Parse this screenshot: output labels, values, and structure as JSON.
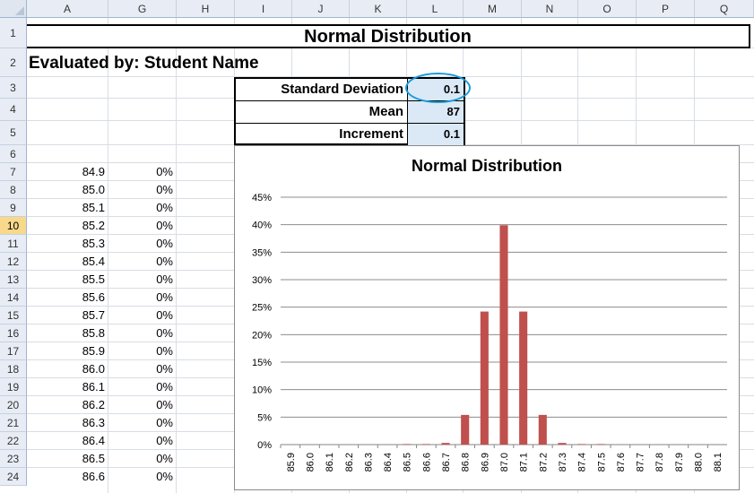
{
  "columns": [
    "A",
    "G",
    "H",
    "I",
    "J",
    "K",
    "L",
    "M",
    "N",
    "O",
    "P",
    "Q"
  ],
  "rows": [
    "1",
    "2",
    "3",
    "4",
    "5",
    "6",
    "7",
    "8",
    "9",
    "10",
    "11",
    "12",
    "13",
    "14",
    "15",
    "16",
    "17",
    "18",
    "19",
    "20",
    "21",
    "22",
    "23",
    "24"
  ],
  "selected_row": "10",
  "sheet": {
    "title": "Normal Distribution",
    "evaluated_by": "Evaluated by: Student Name"
  },
  "params": [
    {
      "label": "Standard Deviation",
      "value": "0.1"
    },
    {
      "label": "Mean",
      "value": "87"
    },
    {
      "label": "Increment",
      "value": "0.1"
    }
  ],
  "table": [
    {
      "x": "84.9",
      "p": "0%"
    },
    {
      "x": "85.0",
      "p": "0%"
    },
    {
      "x": "85.1",
      "p": "0%"
    },
    {
      "x": "85.2",
      "p": "0%"
    },
    {
      "x": "85.3",
      "p": "0%"
    },
    {
      "x": "85.4",
      "p": "0%"
    },
    {
      "x": "85.5",
      "p": "0%"
    },
    {
      "x": "85.6",
      "p": "0%"
    },
    {
      "x": "85.7",
      "p": "0%"
    },
    {
      "x": "85.8",
      "p": "0%"
    },
    {
      "x": "85.9",
      "p": "0%"
    },
    {
      "x": "86.0",
      "p": "0%"
    },
    {
      "x": "86.1",
      "p": "0%"
    },
    {
      "x": "86.2",
      "p": "0%"
    },
    {
      "x": "86.3",
      "p": "0%"
    },
    {
      "x": "86.4",
      "p": "0%"
    },
    {
      "x": "86.5",
      "p": "0%"
    },
    {
      "x": "86.6",
      "p": "0%"
    }
  ],
  "chart_data": {
    "type": "bar",
    "title": "Normal Distribution",
    "categories": [
      "85.9",
      "86.0",
      "86.1",
      "86.2",
      "86.3",
      "86.4",
      "86.5",
      "86.6",
      "86.7",
      "86.8",
      "86.9",
      "87.0",
      "87.1",
      "87.2",
      "87.3",
      "87.4",
      "87.5",
      "87.6",
      "87.7",
      "87.8",
      "87.9",
      "88.0",
      "88.1"
    ],
    "values": [
      0,
      0,
      0,
      0,
      0,
      0,
      0.001,
      0.001,
      0.003,
      0.054,
      0.242,
      0.399,
      0.242,
      0.054,
      0.003,
      0.001,
      0.001,
      0,
      0,
      0,
      0,
      0,
      0
    ],
    "ylim": [
      0,
      0.45
    ],
    "yticks": [
      "0%",
      "5%",
      "10%",
      "15%",
      "20%",
      "25%",
      "30%",
      "35%",
      "40%",
      "45%"
    ],
    "bar_color": "#c0504d",
    "grid": true,
    "legend": "none"
  }
}
